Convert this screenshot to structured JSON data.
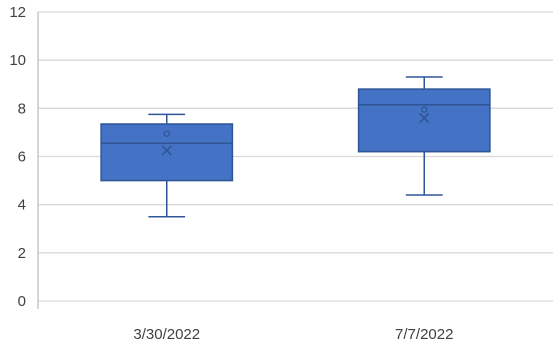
{
  "chart_data": {
    "type": "box",
    "categories": [
      "3/30/2022",
      "7/7/2022"
    ],
    "boxes": [
      {
        "category": "3/30/2022",
        "min": 3.5,
        "q1": 5.0,
        "median": 6.55,
        "q3": 7.35,
        "max": 7.75,
        "mean": 6.25,
        "outliers": [],
        "inner_points": [
          6.95
        ]
      },
      {
        "category": "7/7/2022",
        "min": 4.4,
        "q1": 6.2,
        "median": 8.15,
        "q3": 8.8,
        "max": 9.3,
        "mean": 7.6,
        "outliers": [],
        "inner_points": [
          7.95
        ]
      }
    ],
    "ylim": [
      0,
      12
    ],
    "yticks": [
      "0",
      "2",
      "4",
      "6",
      "8",
      "10",
      "12"
    ],
    "grid": true,
    "legend": "none",
    "colors": {
      "box_fill": "#4472C4",
      "box_stroke": "#2F5597",
      "grid": "#d9d9d9",
      "axis": "#bfbfbf"
    }
  }
}
